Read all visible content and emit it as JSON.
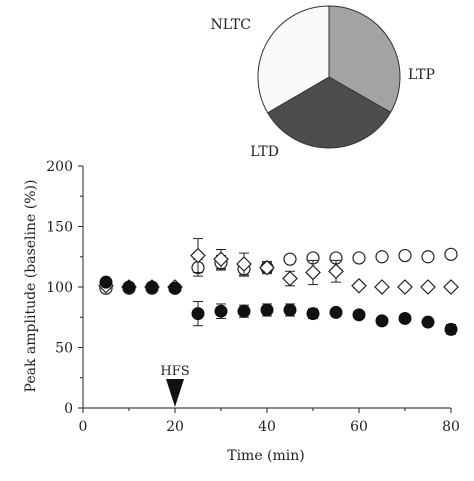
{
  "chart_data": [
    {
      "type": "pie",
      "slices": [
        {
          "label": "LTP",
          "value": 33.3,
          "color": "#a3a3a3"
        },
        {
          "label": "LTD",
          "value": 33.3,
          "color": "#4d4d4d"
        },
        {
          "label": "NLTC",
          "value": 33.4,
          "color": "#fafafa"
        }
      ]
    },
    {
      "type": "scatter",
      "xlabel": "Time (min)",
      "ylabel": "Peak amplitude (baseline (%))",
      "xlim": [
        0,
        80
      ],
      "ylim": [
        0,
        200
      ],
      "xticks": [
        0,
        20,
        40,
        60,
        80
      ],
      "yticks": [
        0,
        50,
        100,
        150,
        200
      ],
      "grid": false,
      "annotation": {
        "text": "HFS",
        "x": 20
      },
      "series": [
        {
          "marker": "circle-open",
          "points": [
            {
              "x": 5,
              "y": 99,
              "err": 2
            },
            {
              "x": 10,
              "y": 99,
              "err": 2
            },
            {
              "x": 15,
              "y": 99,
              "err": 2
            },
            {
              "x": 20,
              "y": 99,
              "err": 2
            },
            {
              "x": 25,
              "y": 116,
              "err": 7
            },
            {
              "x": 30,
              "y": 120,
              "err": 6
            },
            {
              "x": 35,
              "y": 115,
              "err": 6
            },
            {
              "x": 40,
              "y": 116,
              "err": 4
            },
            {
              "x": 45,
              "y": 123,
              "err": 3
            },
            {
              "x": 50,
              "y": 124,
              "err": 3
            },
            {
              "x": 55,
              "y": 124,
              "err": 3
            },
            {
              "x": 60,
              "y": 124,
              "err": 2
            },
            {
              "x": 65,
              "y": 125,
              "err": 2
            },
            {
              "x": 70,
              "y": 126,
              "err": 2
            },
            {
              "x": 75,
              "y": 125,
              "err": 2
            },
            {
              "x": 80,
              "y": 127,
              "err": 2
            }
          ]
        },
        {
          "marker": "diamond-open",
          "points": [
            {
              "x": 5,
              "y": 101,
              "err": 2
            },
            {
              "x": 10,
              "y": 100,
              "err": 2
            },
            {
              "x": 15,
              "y": 100,
              "err": 2
            },
            {
              "x": 20,
              "y": 100,
              "err": 2
            },
            {
              "x": 25,
              "y": 126,
              "err": 14
            },
            {
              "x": 30,
              "y": 123,
              "err": 8
            },
            {
              "x": 35,
              "y": 119,
              "err": 9
            },
            {
              "x": 40,
              "y": 116,
              "err": 5
            },
            {
              "x": 45,
              "y": 107,
              "err": 6
            },
            {
              "x": 50,
              "y": 112,
              "err": 10
            },
            {
              "x": 55,
              "y": 113,
              "err": 9
            },
            {
              "x": 60,
              "y": 101,
              "err": 2
            },
            {
              "x": 65,
              "y": 100,
              "err": 2
            },
            {
              "x": 70,
              "y": 100,
              "err": 2
            },
            {
              "x": 75,
              "y": 100,
              "err": 2
            },
            {
              "x": 80,
              "y": 100,
              "err": 2
            }
          ]
        },
        {
          "marker": "circle-filled",
          "points": [
            {
              "x": 5,
              "y": 104,
              "err": 2
            },
            {
              "x": 10,
              "y": 100,
              "err": 2
            },
            {
              "x": 15,
              "y": 100,
              "err": 2
            },
            {
              "x": 20,
              "y": 99,
              "err": 2
            },
            {
              "x": 25,
              "y": 78,
              "err": 10
            },
            {
              "x": 30,
              "y": 80,
              "err": 6
            },
            {
              "x": 35,
              "y": 80,
              "err": 5
            },
            {
              "x": 40,
              "y": 81,
              "err": 5
            },
            {
              "x": 45,
              "y": 81,
              "err": 5
            },
            {
              "x": 50,
              "y": 78,
              "err": 4
            },
            {
              "x": 55,
              "y": 79,
              "err": 3
            },
            {
              "x": 60,
              "y": 77,
              "err": 3
            },
            {
              "x": 65,
              "y": 72,
              "err": 3
            },
            {
              "x": 70,
              "y": 74,
              "err": 3
            },
            {
              "x": 75,
              "y": 71,
              "err": 3
            },
            {
              "x": 80,
              "y": 65,
              "err": 4
            }
          ]
        }
      ]
    }
  ]
}
